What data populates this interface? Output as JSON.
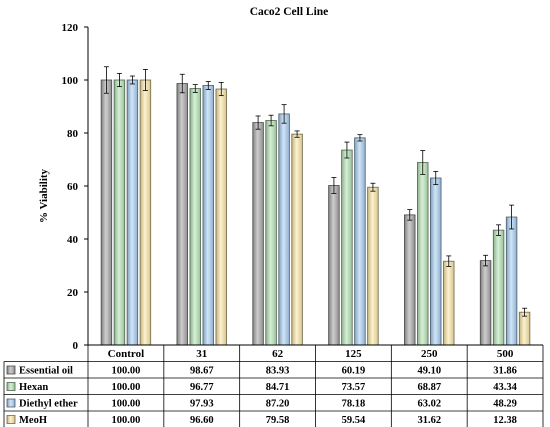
{
  "chart_data": {
    "type": "bar",
    "title": "Caco2 Cell Line",
    "xlabel": "",
    "ylabel": "% Viability",
    "ylim": [
      0,
      120
    ],
    "yticks": [
      0,
      20,
      40,
      60,
      80,
      100,
      120
    ],
    "categories": [
      "Control",
      "31",
      "62",
      "125",
      "250",
      "500"
    ],
    "grid": false,
    "legend": "data table below chart",
    "series": [
      {
        "name": "Essential oil",
        "color": "#a6a6a6",
        "values": [
          100.0,
          98.67,
          83.93,
          60.19,
          49.1,
          31.86
        ],
        "labels": [
          "100.00",
          "98.67",
          "83.93",
          "60.19",
          "49.10",
          "31.86"
        ],
        "errors": [
          5,
          3.5,
          2.5,
          3,
          2,
          2
        ]
      },
      {
        "name": "Hexan",
        "color": "#b5e3b5",
        "values": [
          100.0,
          96.77,
          84.71,
          73.57,
          68.87,
          43.34
        ],
        "labels": [
          "100.00",
          "96.77",
          "84.71",
          "73.57",
          "68.87",
          "43.34"
        ],
        "errors": [
          2.5,
          1.5,
          2,
          3,
          4.5,
          2
        ]
      },
      {
        "name": "Diethyl ether",
        "color": "#a9cff2",
        "values": [
          100.0,
          97.93,
          87.2,
          78.18,
          63.02,
          48.29
        ],
        "labels": [
          "100.00",
          "97.93",
          "87.20",
          "78.18",
          "63.02",
          "48.29"
        ],
        "errors": [
          1.5,
          1.5,
          3.5,
          1.2,
          2.5,
          4.5
        ]
      },
      {
        "name": "MeoH",
        "color": "#fbe7a6",
        "values": [
          100.0,
          96.6,
          79.58,
          59.54,
          31.62,
          12.38
        ],
        "labels": [
          "100.00",
          "96.60",
          "79.58",
          "59.54",
          "31.62",
          "12.38"
        ],
        "errors": [
          4,
          2.5,
          1.2,
          1.5,
          2,
          1.5
        ]
      }
    ]
  }
}
